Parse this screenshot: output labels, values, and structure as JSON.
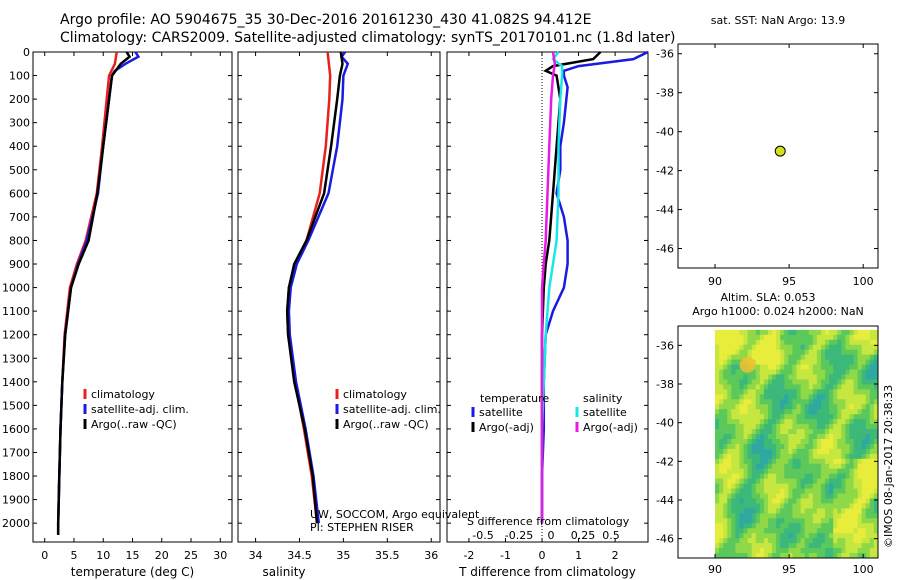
{
  "header": {
    "title_line1": "Argo profile: AO 5904675_35 30-Dec-2016 20161230_430 41.082S 94.412E",
    "title_line2": "Climatology: CARS2009. Satellite-adjusted climatology: synTS_20170101.nc (1.8d later)"
  },
  "colors": {
    "red": "#e8201c",
    "blue": "#1a1ae0",
    "black": "#000000",
    "cyan": "#19e6e6",
    "magenta": "#e619e6",
    "marker": "#d4e01e"
  },
  "chart_data": [
    {
      "id": "temperature",
      "type": "line",
      "xlabel": "temperature (deg C)",
      "ylabel": "",
      "xlim": [
        -2,
        32
      ],
      "ylim": [
        2080,
        0
      ],
      "xticks": [
        0,
        5,
        10,
        15,
        20,
        25,
        30
      ],
      "yticks": [
        0,
        100,
        200,
        300,
        400,
        500,
        600,
        700,
        800,
        900,
        1000,
        1100,
        1200,
        1300,
        1400,
        1500,
        1600,
        1700,
        1800,
        1900,
        2000
      ],
      "legend": [
        "climatology",
        "satellite-adj. clim.",
        "Argo(..raw -QC)"
      ],
      "series": [
        {
          "name": "climatology",
          "color": "red",
          "depth": [
            0,
            50,
            100,
            200,
            400,
            600,
            800,
            900,
            1000,
            1200,
            1400,
            1600,
            1800,
            2000,
            2050
          ],
          "values": [
            12.3,
            12.0,
            11.0,
            10.6,
            9.8,
            8.9,
            7.0,
            5.5,
            4.3,
            3.4,
            3.0,
            2.7,
            2.5,
            2.3,
            2.3
          ]
        },
        {
          "name": "satellite-adj. clim.",
          "color": "blue",
          "depth": [
            0,
            20,
            50,
            80,
            100,
            200,
            400,
            600,
            800,
            900,
            1000,
            1200,
            1400,
            1600,
            1800,
            2000,
            2050
          ],
          "values": [
            15.5,
            16.0,
            13.8,
            12.0,
            11.5,
            11.0,
            10.0,
            9.1,
            7.2,
            5.7,
            4.5,
            3.5,
            3.0,
            2.7,
            2.5,
            2.3,
            2.3
          ]
        },
        {
          "name": "Argo(..raw -QC)",
          "color": "black",
          "depth": [
            0,
            20,
            50,
            100,
            200,
            400,
            600,
            800,
            900,
            1000,
            1200,
            1400,
            1600,
            1800,
            2000,
            2050
          ],
          "values": [
            14.0,
            14.5,
            13.0,
            11.5,
            11.0,
            10.0,
            9.0,
            7.5,
            5.8,
            4.5,
            3.5,
            3.0,
            2.7,
            2.5,
            2.3,
            2.3
          ]
        }
      ]
    },
    {
      "id": "salinity",
      "type": "line",
      "xlabel": "salinity",
      "xlim": [
        33.8,
        36.1
      ],
      "ylim": [
        2080,
        0
      ],
      "xticks": [
        34,
        34.5,
        35,
        35.5,
        36
      ],
      "legend": [
        "climatology",
        "satellite-adj. clim.",
        "Argo(..raw -QC)"
      ],
      "annotation1": "UW, SOCCOM, Argo equivalent",
      "annotation2": "PI: STEPHEN RISER",
      "series": [
        {
          "name": "climatology",
          "color": "red",
          "depth": [
            0,
            100,
            200,
            400,
            600,
            800,
            900,
            1000,
            1100,
            1200,
            1400,
            1600,
            1800,
            2000
          ],
          "values": [
            34.82,
            34.85,
            34.84,
            34.8,
            34.73,
            34.58,
            34.45,
            34.38,
            34.36,
            34.37,
            34.45,
            34.55,
            34.64,
            34.7
          ]
        },
        {
          "name": "satellite-adj. clim.",
          "color": "blue",
          "depth": [
            0,
            20,
            50,
            100,
            200,
            400,
            600,
            800,
            900,
            1000,
            1100,
            1200,
            1400,
            1600,
            1800,
            2000
          ],
          "values": [
            35.02,
            34.98,
            35.05,
            35.0,
            34.99,
            34.93,
            34.83,
            34.6,
            34.47,
            34.4,
            34.38,
            34.39,
            34.46,
            34.57,
            34.66,
            34.72
          ]
        },
        {
          "name": "Argo(..raw -QC)",
          "color": "black",
          "depth": [
            0,
            50,
            100,
            200,
            400,
            600,
            800,
            900,
            1000,
            1100,
            1200,
            1400,
            1600,
            1800,
            2000
          ],
          "values": [
            34.97,
            34.99,
            34.96,
            34.93,
            34.86,
            34.78,
            34.58,
            34.44,
            34.38,
            34.36,
            34.37,
            34.44,
            34.56,
            34.65,
            34.7
          ]
        }
      ]
    },
    {
      "id": "difference",
      "type": "line",
      "xlabel": "T difference from climatology",
      "xlim": [
        -2.6,
        2.9
      ],
      "ylim": [
        2080,
        0
      ],
      "xticks": [
        -2,
        -1,
        0,
        1,
        2
      ],
      "top_label": "S difference from climatology",
      "top_ticks": [
        "-0.5",
        "-0.25",
        "0",
        "0.25",
        "0.5"
      ],
      "legend_temperature": "temperature",
      "legend_salinity": "salinity",
      "legend_satellite_t": "satellite",
      "legend_argo_t": "Argo(-adj)",
      "legend_satellite_s": "satellite",
      "legend_argo_s": "Argo(-adj)",
      "series": [
        {
          "name": "T satellite",
          "color": "blue",
          "depth": [
            0,
            30,
            60,
            80,
            100,
            150,
            300,
            400,
            500,
            600,
            700,
            800,
            900,
            1000,
            1100,
            1200,
            1400,
            1600,
            1800,
            2000
          ],
          "values": [
            2.9,
            2.5,
            1.0,
            0.6,
            0.6,
            0.7,
            0.6,
            0.5,
            0.5,
            0.4,
            0.6,
            0.7,
            0.7,
            0.6,
            0.3,
            0.1,
            0.05,
            0.05,
            0.0,
            0.0
          ]
        },
        {
          "name": "T Argo",
          "color": "black",
          "depth": [
            0,
            30,
            60,
            80,
            100,
            200,
            400,
            600,
            800,
            900,
            1000,
            1200,
            1400,
            1600,
            1800,
            2000
          ],
          "values": [
            1.6,
            1.4,
            0.3,
            0.1,
            0.4,
            0.5,
            0.4,
            0.3,
            0.2,
            0.1,
            0.05,
            0.0,
            0.0,
            0.0,
            0.0,
            0.0
          ]
        },
        {
          "name": "S satellite",
          "color": "cyan",
          "depth": [
            0,
            30,
            60,
            100,
            200,
            400,
            600,
            800,
            900,
            1000,
            1200,
            1400,
            1600,
            1800,
            2000
          ],
          "values": [
            0.45,
            0.3,
            0.55,
            0.55,
            0.5,
            0.45,
            0.45,
            0.4,
            0.3,
            0.2,
            0.1,
            0.05,
            0.0,
            0.0,
            0.0
          ]
        },
        {
          "name": "S Argo",
          "color": "magenta",
          "depth": [
            0,
            50,
            100,
            200,
            400,
            600,
            800,
            900,
            1000,
            1200,
            1400,
            1600,
            1800,
            2000
          ],
          "values": [
            0.3,
            0.35,
            0.3,
            0.25,
            0.2,
            0.15,
            0.1,
            0.05,
            0.0,
            0.0,
            0.0,
            0.0,
            0.0,
            0.0
          ]
        }
      ]
    },
    {
      "id": "location",
      "type": "scatter",
      "title": "sat. SST: NaN Argo: 13.9",
      "xlim": [
        87.5,
        101
      ],
      "ylim": [
        -47,
        -35.5
      ],
      "xticks": [
        90,
        95,
        100
      ],
      "yticks": [
        -36,
        -38,
        -40,
        -42,
        -44,
        -46
      ],
      "points": [
        {
          "x": 94.4,
          "y": -41.0
        }
      ]
    },
    {
      "id": "altimetry",
      "type": "heatmap",
      "title_line1": "Altim. SLA: 0.053",
      "title_line2": "Argo h1000: 0.024 h2000: NaN",
      "xlim": [
        87.5,
        101
      ],
      "ylim": [
        -47,
        -35
      ],
      "xticks": [
        90,
        95,
        100
      ],
      "yticks": [
        -36,
        -38,
        -40,
        -42,
        -44,
        -46
      ],
      "data_xlim": [
        90,
        101
      ],
      "data_ylim": [
        -47,
        -35.2
      ]
    }
  ],
  "footer": {
    "credit": "©IMOS 08-Jan-2017 20:38:33"
  }
}
